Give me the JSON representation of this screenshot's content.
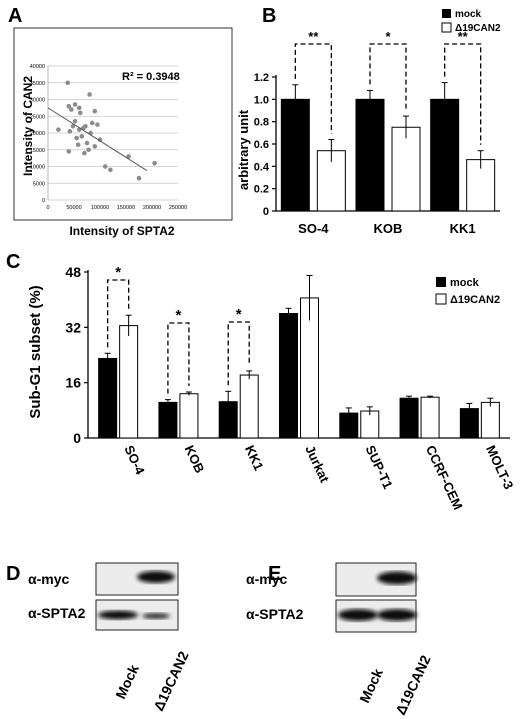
{
  "panels": {
    "A": {
      "letter": "A"
    },
    "B": {
      "letter": "B"
    },
    "C": {
      "letter": "C"
    },
    "D": {
      "letter": "D"
    },
    "E": {
      "letter": "E"
    }
  },
  "legend": {
    "mock": "mock",
    "d19can2": "Δ19CAN2"
  },
  "chart_data": [
    {
      "panel": "A",
      "type": "scatter",
      "xlabel": "Intensity of SPTA2",
      "ylabel": "Intensity of CAN2",
      "xlim": [
        0,
        250000
      ],
      "ylim": [
        0,
        40000
      ],
      "xticks": [
        "0",
        "50000",
        "100000",
        "150000",
        "200000",
        "250000"
      ],
      "yticks": [
        "0",
        "5000",
        "10000",
        "15000",
        "20000",
        "25000",
        "30000",
        "35000",
        "40000"
      ],
      "annotation": "R² = 0.3948",
      "grid": true,
      "trendline": {
        "x0": 0,
        "y0": 27500,
        "x1": 190000,
        "y1": 8800
      },
      "points": [
        [
          38000,
          35000
        ],
        [
          40000,
          28000
        ],
        [
          45000,
          27000
        ],
        [
          52000,
          28500
        ],
        [
          60000,
          27500
        ],
        [
          80000,
          31500
        ],
        [
          90000,
          26500
        ],
        [
          20000,
          21000
        ],
        [
          42000,
          20500
        ],
        [
          48000,
          22000
        ],
        [
          52000,
          23500
        ],
        [
          55000,
          18500
        ],
        [
          60000,
          21000
        ],
        [
          65000,
          19000
        ],
        [
          68000,
          21500
        ],
        [
          72000,
          22000
        ],
        [
          75000,
          17000
        ],
        [
          78000,
          15000
        ],
        [
          82000,
          20000
        ],
        [
          85000,
          23000
        ],
        [
          90000,
          16000
        ],
        [
          95000,
          22500
        ],
        [
          100000,
          18000
        ],
        [
          110000,
          10000
        ],
        [
          120000,
          9000
        ],
        [
          40000,
          14500
        ],
        [
          70000,
          14000
        ],
        [
          155000,
          13000
        ],
        [
          175000,
          6500
        ],
        [
          205000,
          11000
        ],
        [
          62000,
          26000
        ],
        [
          58000,
          16500
        ]
      ]
    },
    {
      "panel": "B",
      "type": "bar",
      "ylabel": "arbitrary unit",
      "ylim": [
        0,
        1.2
      ],
      "yticks": [
        "0",
        "0.2",
        "0.4",
        "0.6",
        "0.8",
        "1.0",
        "1.2"
      ],
      "categories": [
        "SO-4",
        "KOB",
        "KK1"
      ],
      "series": [
        {
          "name": "mock",
          "values": [
            1.0,
            1.0,
            1.0
          ],
          "errors": [
            0.13,
            0.08,
            0.15
          ]
        },
        {
          "name": "Δ19CAN2",
          "values": [
            0.54,
            0.75,
            0.46
          ],
          "errors": [
            0.1,
            0.1,
            0.08
          ]
        }
      ],
      "significance": [
        "**",
        "*",
        "**"
      ],
      "legend": "top-right"
    },
    {
      "panel": "C",
      "type": "bar",
      "ylabel": "Sub-G1 subset (%)",
      "ylim": [
        0,
        48
      ],
      "yticks": [
        "0",
        "16",
        "32",
        "48"
      ],
      "categories": [
        "SO-4",
        "KOB",
        "KK1",
        "Jurkat",
        "SUP-T1",
        "CCRF-CEM",
        "MOLT-3"
      ],
      "series": [
        {
          "name": "mock",
          "values": [
            23,
            10.3,
            10.5,
            36,
            7.2,
            11.5,
            8.5
          ],
          "errors": [
            1.5,
            0.8,
            3.0,
            1.5,
            1.5,
            0.6,
            1.5
          ]
        },
        {
          "name": "Δ19CAN2",
          "values": [
            32.5,
            12.8,
            18.2,
            40.5,
            7.8,
            11.8,
            10.3
          ],
          "errors": [
            3.0,
            0.5,
            1.2,
            6.5,
            1.2,
            0.3,
            1.2
          ]
        }
      ],
      "significance": [
        "*",
        "*",
        "*",
        "",
        "",
        "",
        ""
      ],
      "legend": "top-right"
    }
  ],
  "blotD": {
    "rows": [
      "α-myc",
      "α-SPTA2"
    ],
    "lanes": [
      "Mock",
      "Δ19CAN2"
    ]
  },
  "blotE": {
    "rows": [
      "α-myc",
      "α-SPTA2"
    ],
    "lanes": [
      "Mock",
      "Δ19CAN2"
    ]
  }
}
